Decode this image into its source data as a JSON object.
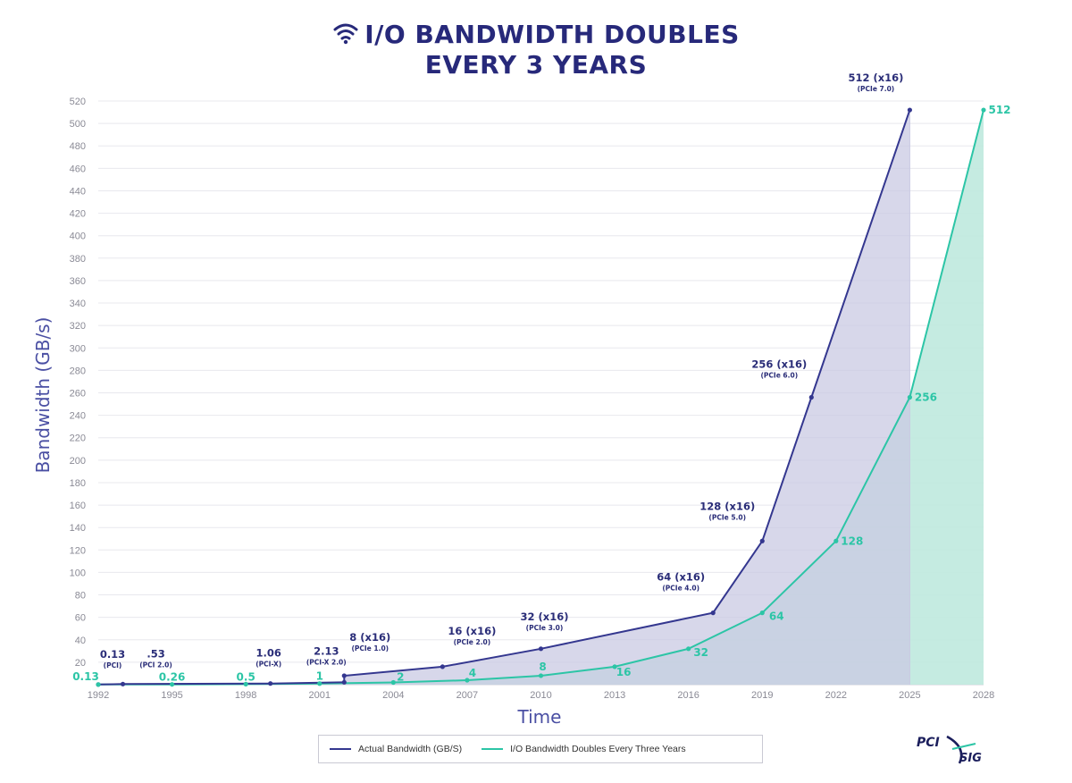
{
  "title": {
    "line1": "I/O BANDWIDTH DOUBLES",
    "line2": "EVERY 3 YEARS"
  },
  "icons": {
    "title_icon": "wifi-icon",
    "logo": "pci-sig-logo"
  },
  "logo_text": [
    "PCI",
    "SIG"
  ],
  "colors": {
    "actual": "#34378f",
    "actual_fill": "#c9c9e3",
    "doubling": "#2cc5a6",
    "doubling_fill": "#bfe9de",
    "title": "#27297a"
  },
  "legend": [
    {
      "name": "Actual Bandwidth (GB/S)",
      "color": "#34378f"
    },
    {
      "name": "I/O Bandwidth Doubles Every Three Years",
      "color": "#2cc5a6"
    }
  ],
  "chart_data": {
    "type": "area",
    "title": "I/O BANDWIDTH DOUBLES EVERY 3 YEARS",
    "xlabel": "Time",
    "ylabel": "Bandwidth (GB/s)",
    "xlim": [
      1992,
      2028
    ],
    "ylim": [
      0,
      520
    ],
    "x_ticks": [
      1992,
      1995,
      1998,
      2001,
      2004,
      2007,
      2010,
      2013,
      2016,
      2019,
      2022,
      2025,
      2028
    ],
    "y_ticks": [
      20,
      40,
      60,
      80,
      100,
      120,
      140,
      160,
      180,
      200,
      220,
      240,
      260,
      280,
      300,
      320,
      340,
      360,
      380,
      400,
      420,
      440,
      460,
      480,
      500,
      520
    ],
    "grid": true,
    "legend_position": "bottom-center",
    "series": [
      {
        "name": "Actual Bandwidth (GB/S)",
        "points": [
          {
            "x": 1992,
            "y": 0.13,
            "label": "0.13",
            "sub": "(PCI)"
          },
          {
            "x": 1993,
            "y": 0.53,
            "label": ".53",
            "sub": "(PCI 2.0)"
          },
          {
            "x": 1999,
            "y": 1.06,
            "label": "1.06",
            "sub": "(PCI-X)"
          },
          {
            "x": 2002,
            "y": 2.13,
            "label": "2.13",
            "sub": "(PCI-X 2.0)"
          },
          {
            "x": 2002,
            "y": 8,
            "label": "8 (x16)",
            "sub": "(PCIe 1.0)"
          },
          {
            "x": 2006,
            "y": 16,
            "label": "16 (x16)",
            "sub": "(PCIe 2.0)"
          },
          {
            "x": 2010,
            "y": 32,
            "label": "32 (x16)",
            "sub": "(PCIe 3.0)"
          },
          {
            "x": 2017,
            "y": 64,
            "label": "64 (x16)",
            "sub": "(PCIe 4.0)"
          },
          {
            "x": 2019,
            "y": 128,
            "label": "128 (x16)",
            "sub": "(PCIe 5.0)"
          },
          {
            "x": 2021,
            "y": 256,
            "label": "256 (x16)",
            "sub": "(PCIe 6.0)"
          },
          {
            "x": 2025,
            "y": 512,
            "label": "512 (x16)",
            "sub": "(PCIe 7.0)"
          }
        ]
      },
      {
        "name": "I/O Bandwidth Doubles Every Three Years",
        "points": [
          {
            "x": 1992,
            "y": 0.13,
            "label": "0.13"
          },
          {
            "x": 1995,
            "y": 0.26,
            "label": "0.26"
          },
          {
            "x": 1998,
            "y": 0.5,
            "label": "0.5"
          },
          {
            "x": 2001,
            "y": 1,
            "label": "1"
          },
          {
            "x": 2004,
            "y": 2,
            "label": "2"
          },
          {
            "x": 2007,
            "y": 4,
            "label": "4"
          },
          {
            "x": 2010,
            "y": 8,
            "label": "8"
          },
          {
            "x": 2013,
            "y": 16,
            "label": "16"
          },
          {
            "x": 2016,
            "y": 32,
            "label": "32"
          },
          {
            "x": 2019,
            "y": 64,
            "label": "64"
          },
          {
            "x": 2022,
            "y": 128,
            "label": "128"
          },
          {
            "x": 2025,
            "y": 256,
            "label": "256"
          },
          {
            "x": 2028,
            "y": 512,
            "label": "512"
          }
        ]
      }
    ]
  }
}
